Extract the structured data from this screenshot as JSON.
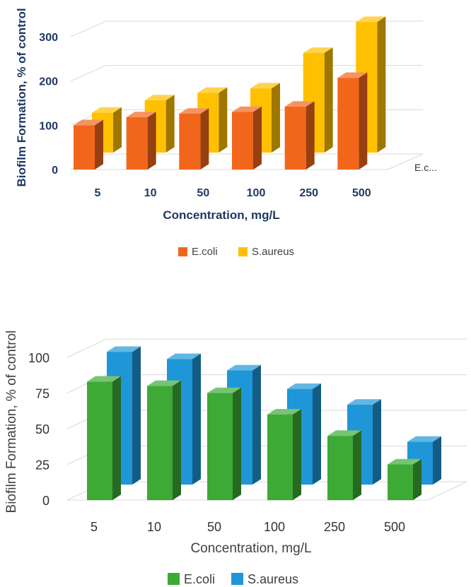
{
  "chart_data": [
    {
      "type": "bar",
      "style": "3d-clustered",
      "title": "",
      "xlabel": "Concentration, mg/L",
      "ylabel": "Biofilm Formation, % of control",
      "categories": [
        "5",
        "10",
        "50",
        "100",
        "250",
        "500"
      ],
      "yticks": [
        "0",
        "100",
        "200",
        "300"
      ],
      "ylim": [
        0,
        300
      ],
      "depth_axis_label": "E.c...",
      "legend_position": "bottom",
      "series": [
        {
          "name": "E.coli",
          "values": [
            100,
            118,
            126,
            130,
            142,
            207
          ],
          "color": "#f2661c"
        },
        {
          "name": "S.aureus",
          "values": [
            90,
            118,
            135,
            145,
            225,
            295
          ],
          "color": "#ffc000"
        }
      ]
    },
    {
      "type": "bar",
      "style": "3d-clustered",
      "title": "",
      "xlabel": "Concentration, mg/L",
      "ylabel": "Biofilm Formation, % of control",
      "categories": [
        "5",
        "10",
        "50",
        "100",
        "250",
        "500"
      ],
      "yticks": [
        "0",
        "25",
        "50",
        "75",
        "100"
      ],
      "ylim": [
        0,
        100
      ],
      "legend_position": "bottom",
      "series": [
        {
          "name": "E.coli",
          "values": [
            83,
            80,
            75,
            60,
            45,
            25
          ],
          "color": "#3daa35"
        },
        {
          "name": "S.aureus",
          "values": [
            93,
            88,
            80,
            67,
            56,
            30
          ],
          "color": "#1f96d7"
        }
      ]
    }
  ]
}
